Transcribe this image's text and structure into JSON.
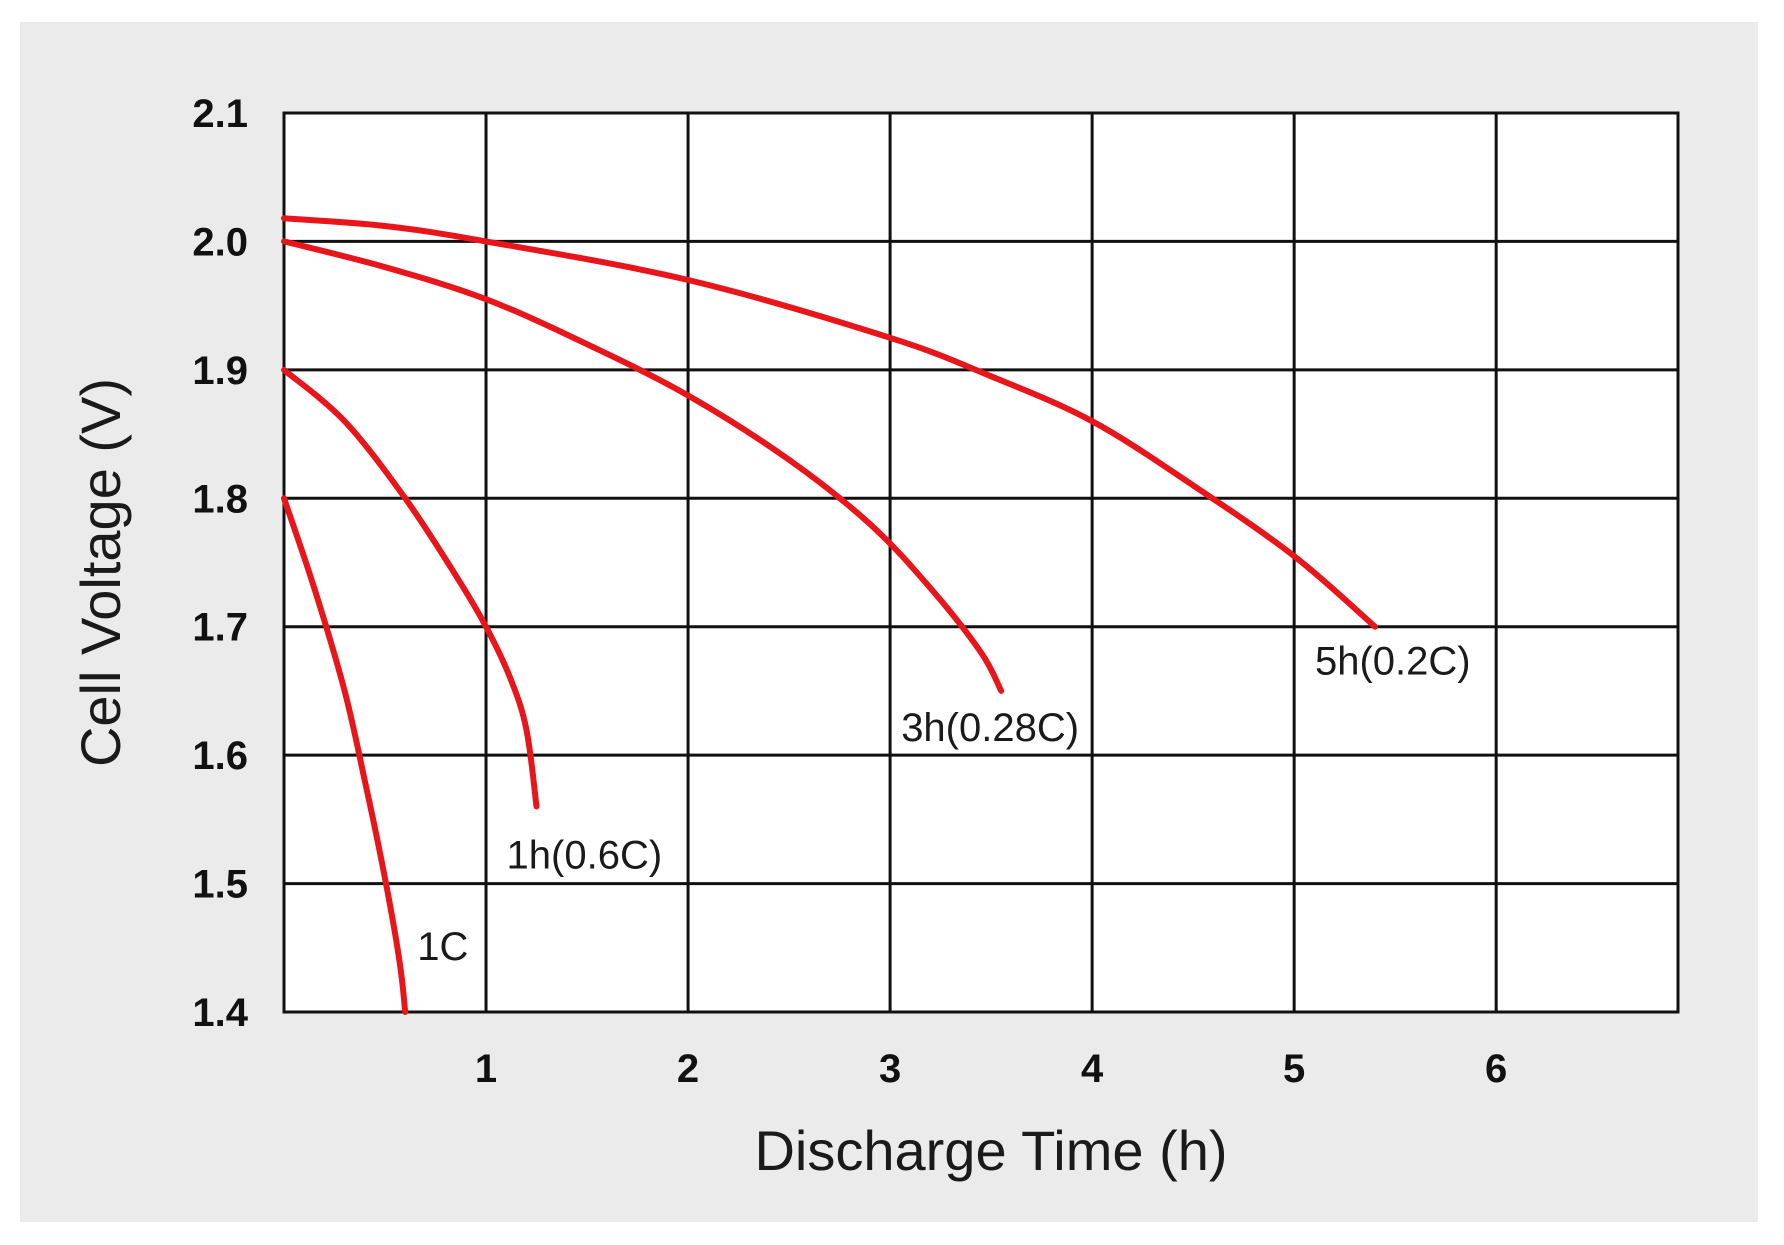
{
  "chart_data": {
    "type": "line",
    "title": "",
    "xlabel": "Discharge Time (h)",
    "ylabel": "Cell Voltage (V)",
    "xlim": [
      0,
      6.9
    ],
    "ylim": [
      1.4,
      2.1
    ],
    "xticks": [
      1,
      2,
      3,
      4,
      5,
      6
    ],
    "xtick_labels": [
      "1",
      "2",
      "3",
      "4",
      "5",
      "6"
    ],
    "yticks": [
      1.4,
      1.5,
      1.6,
      1.7,
      1.8,
      1.9,
      2.0,
      2.1
    ],
    "ytick_labels": [
      "1.4",
      "1.5",
      "1.6",
      "1.7",
      "1.8",
      "1.9",
      "2.0",
      "2.1"
    ],
    "grid": true,
    "line_color": "#e8161b",
    "series": [
      {
        "name": "1C",
        "x": [
          0,
          0.15,
          0.3,
          0.4,
          0.48,
          0.54,
          0.58,
          0.6
        ],
        "y": [
          1.8,
          1.73,
          1.65,
          1.58,
          1.52,
          1.47,
          1.43,
          1.4
        ]
      },
      {
        "name": "1h(0.6C)",
        "x": [
          0,
          0.3,
          0.6,
          0.85,
          1.0,
          1.12,
          1.2,
          1.25
        ],
        "y": [
          1.9,
          1.86,
          1.8,
          1.74,
          1.7,
          1.66,
          1.62,
          1.56
        ]
      },
      {
        "name": "3h(0.28C)",
        "x": [
          0,
          0.5,
          1.0,
          1.5,
          2.0,
          2.5,
          2.9,
          3.2,
          3.45,
          3.55
        ],
        "y": [
          2.0,
          1.98,
          1.955,
          1.92,
          1.88,
          1.83,
          1.78,
          1.73,
          1.68,
          1.65
        ]
      },
      {
        "name": "5h(0.2C)",
        "x": [
          0,
          0.5,
          1.0,
          2.0,
          3.0,
          3.5,
          4.0,
          4.5,
          5.0,
          5.4
        ],
        "y": [
          2.018,
          2.012,
          2.0,
          1.97,
          1.925,
          1.895,
          1.86,
          1.81,
          1.755,
          1.7
        ]
      }
    ]
  }
}
